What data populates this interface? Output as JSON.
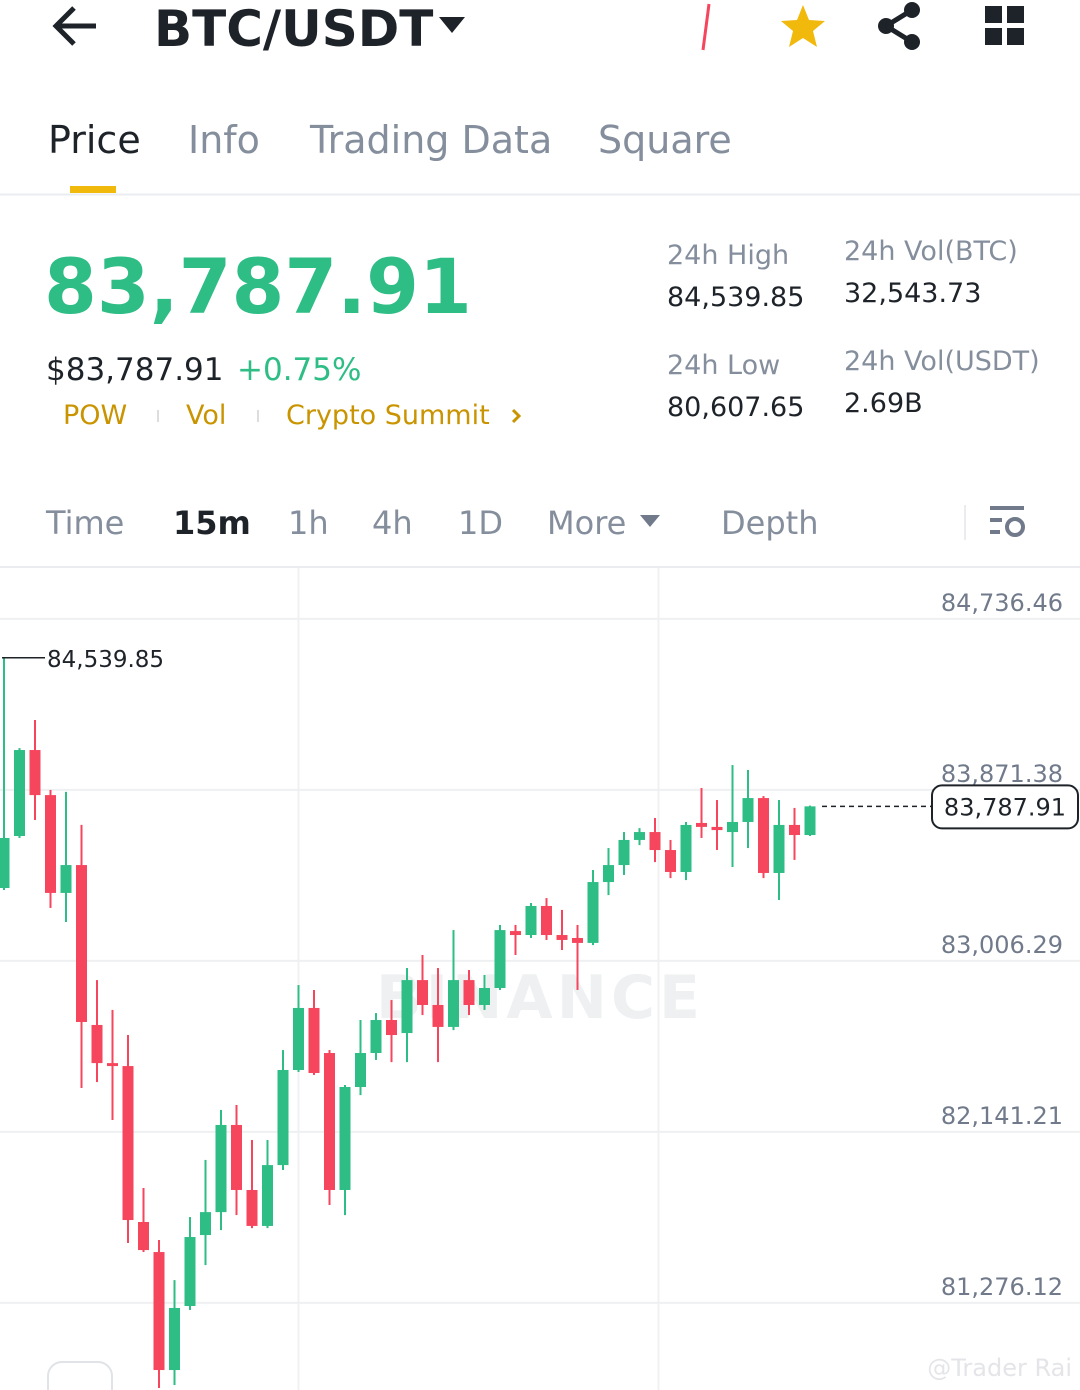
{
  "header": {
    "pair": "BTC/USDT"
  },
  "tabs": [
    "Price",
    "Info",
    "Trading Data",
    "Square"
  ],
  "price": {
    "last": "83,787.91",
    "usd": "$83,787.91",
    "change": "+0.75%",
    "tags": [
      "POW",
      "Vol",
      "Crypto Summit"
    ]
  },
  "stats": [
    {
      "label": "24h High",
      "value": "84,539.85"
    },
    {
      "label": "24h Vol(BTC)",
      "value": "32,543.73"
    },
    {
      "label": "24h Low",
      "value": "80,607.65"
    },
    {
      "label": "24h Vol(USDT)",
      "value": "2.69B"
    }
  ],
  "intervals": [
    "Time",
    "15m",
    "1h",
    "4h",
    "1D",
    "More",
    "Depth"
  ],
  "chart_data": {
    "type": "candlestick",
    "watermark": "BINANCE",
    "up_color": "#2ebd85",
    "down_color": "#f6465d",
    "ylim": [
      80835,
      84994
    ],
    "yticks": [
      {
        "value": 81276.12,
        "label": "81,276.12"
      },
      {
        "value": 82141.21,
        "label": "82,141.21"
      },
      {
        "value": 83006.29,
        "label": "83,006.29"
      },
      {
        "value": 83871.38,
        "label": "83,871.38"
      },
      {
        "value": 84736.46,
        "label": "84,736.46"
      }
    ],
    "open": [
      83375,
      83638,
      84073,
      83845,
      83350,
      83491,
      82682,
      82489,
      82474,
      81685,
      81533,
      80936,
      81260,
      81619,
      81735,
      82176,
      81847,
      81665,
      81973,
      82454,
      82768,
      82540,
      81847,
      82368,
      82540,
      82707,
      82641,
      82909,
      82783,
      82672,
      82909,
      82783,
      82869,
      83157,
      83137,
      83284,
      83137,
      83122,
      83097,
      83405,
      83491,
      83618,
      83658,
      83567,
      83456,
      83704,
      83684,
      83658,
      83709,
      83830,
      83451,
      83694,
      83643
    ],
    "high": [
      84539.85,
      84083,
      84225,
      83871,
      83861,
      83694,
      82909,
      82758,
      82631,
      81857,
      81594,
      81391,
      81710,
      81999,
      82252,
      82277,
      82100,
      82100,
      82555,
      82884,
      82859,
      82555,
      82378,
      82707,
      82742,
      82808,
      82970,
      83036,
      82970,
      83162,
      82960,
      82935,
      83188,
      83188,
      83299,
      83324,
      83264,
      83188,
      83466,
      83577,
      83658,
      83678,
      83729,
      83618,
      83709,
      83881,
      83820,
      83997,
      83972,
      83840,
      83820,
      83780,
      83792
    ],
    "low": [
      83365,
      83628,
      83719,
      83274,
      83203,
      82363,
      82393,
      82201,
      81579,
      81533,
      80845,
      80860,
      81240,
      81467,
      81644,
      81720,
      81654,
      81654,
      81948,
      82444,
      82429,
      81771,
      81720,
      82327,
      82505,
      82494,
      82494,
      82732,
      82494,
      82656,
      82732,
      82758,
      82859,
      83036,
      83122,
      83112,
      83061,
      82859,
      83086,
      83339,
      83441,
      83592,
      83506,
      83425,
      83415,
      83628,
      83567,
      83481,
      83577,
      83425,
      83314,
      83517,
      83638
    ],
    "close": [
      83628,
      84073,
      83845,
      83350,
      83491,
      82697,
      82489,
      82474,
      81695,
      81543,
      80936,
      81250,
      81609,
      81735,
      82176,
      81847,
      81665,
      81973,
      82454,
      82768,
      82439,
      81847,
      82368,
      82540,
      82707,
      82631,
      82909,
      82783,
      82672,
      82909,
      82783,
      82869,
      83162,
      83137,
      83284,
      83137,
      83112,
      83097,
      83405,
      83491,
      83618,
      83658,
      83567,
      83456,
      83694,
      83684,
      83668,
      83709,
      83830,
      83451,
      83694,
      83643,
      83787.91
    ]
  },
  "footer": {
    "credit": "@Trader Rai"
  }
}
